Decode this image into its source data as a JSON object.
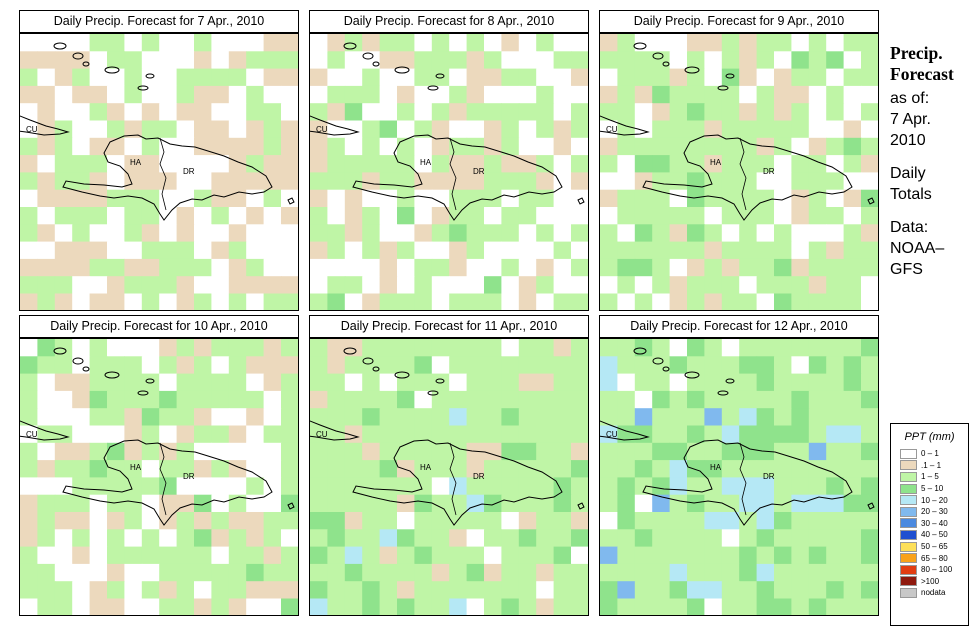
{
  "panels": [
    {
      "title": "Daily Precip. Forecast for  7 Apr., 2010",
      "seed": 11,
      "dist": [
        0.36,
        0.32,
        0.32,
        0,
        0,
        0
      ]
    },
    {
      "title": "Daily Precip. Forecast for  8 Apr., 2010",
      "seed": 23,
      "dist": [
        0.34,
        0.22,
        0.42,
        0.02,
        0,
        0
      ]
    },
    {
      "title": "Daily Precip. Forecast for  9 Apr., 2010",
      "seed": 37,
      "dist": [
        0.22,
        0.14,
        0.58,
        0.06,
        0,
        0
      ]
    },
    {
      "title": "Daily Precip. Forecast for  10 Apr., 2010",
      "seed": 41,
      "dist": [
        0.28,
        0.18,
        0.5,
        0.04,
        0,
        0
      ]
    },
    {
      "title": "Daily Precip. Forecast for  11 Apr., 2010",
      "seed": 53,
      "dist": [
        0.06,
        0.06,
        0.74,
        0.12,
        0.02,
        0
      ]
    },
    {
      "title": "Daily Precip. Forecast for  12 Apr., 2010",
      "seed": 67,
      "dist": [
        0.04,
        0.0,
        0.64,
        0.22,
        0.07,
        0.03
      ]
    }
  ],
  "map_labels": {
    "cuba": "CU",
    "haiti": "HA",
    "dr": "DR"
  },
  "side": {
    "title_line1": "Precip.",
    "title_line2": "Forecast",
    "asof": "as of:",
    "date_line1": "7 Apr.",
    "date_line2": "2010",
    "daily_line1": "Daily",
    "daily_line2": "Totals",
    "data_line1": "Data:",
    "data_line2": "NOAA–",
    "data_line3": "GFS"
  },
  "legend": {
    "title": "PPT (mm)",
    "items": [
      {
        "label": "0 – 1",
        "color": "#ffffff"
      },
      {
        "label": ".1 – 1",
        "color": "#ecd9bd"
      },
      {
        "label": "1 – 5",
        "color": "#bff5a6"
      },
      {
        "label": "5 – 10",
        "color": "#8fe38c"
      },
      {
        "label": "10 – 20",
        "color": "#b5e8f5"
      },
      {
        "label": "20 – 30",
        "color": "#80b9ee"
      },
      {
        "label": "30 – 40",
        "color": "#4b8ae0"
      },
      {
        "label": "40 – 50",
        "color": "#1e4fd0"
      },
      {
        "label": "50 – 65",
        "color": "#fde05a"
      },
      {
        "label": "65 – 80",
        "color": "#f9a21a"
      },
      {
        "label": "80 – 100",
        "color": "#e23d12"
      },
      {
        "label": ">100",
        "color": "#8f1a0e"
      },
      {
        "label": "nodata",
        "color": "#c8c8c8"
      }
    ]
  }
}
